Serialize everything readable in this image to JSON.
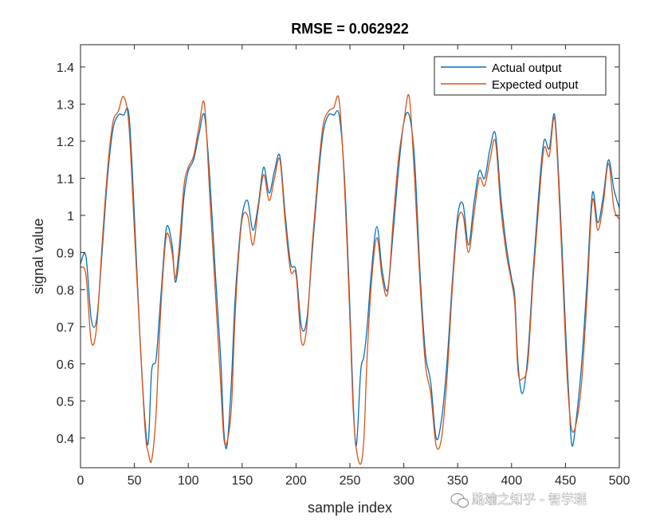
{
  "chart_data": {
    "type": "line",
    "title": "RMSE = 0.062922",
    "xlabel": "sample index",
    "ylabel": "signal value",
    "xlim": [
      0,
      500
    ],
    "ylim": [
      0.32,
      1.46
    ],
    "xticks": [
      0,
      50,
      100,
      150,
      200,
      250,
      300,
      350,
      400,
      450,
      500
    ],
    "yticks": [
      0.4,
      0.5,
      0.6,
      0.7,
      0.8,
      0.9,
      1.0,
      1.1,
      1.2,
      1.3,
      1.4
    ],
    "ytick_labels": [
      "0.4",
      "0.5",
      "0.6",
      "0.7",
      "0.8",
      "0.9",
      "1",
      "1.1",
      "1.2",
      "1.3",
      "1.4"
    ],
    "legend_position": "top-right",
    "series": [
      {
        "name": "Actual output",
        "color": "#0072BD",
        "x": [
          0,
          5,
          10,
          15,
          20,
          25,
          30,
          35,
          40,
          45,
          50,
          55,
          60,
          63,
          66,
          70,
          73,
          76,
          80,
          85,
          88,
          92,
          96,
          100,
          105,
          110,
          115,
          120,
          125,
          130,
          133,
          136,
          140,
          143,
          146,
          150,
          155,
          160,
          165,
          170,
          175,
          180,
          185,
          190,
          195,
          200,
          205,
          210,
          215,
          220,
          225,
          230,
          235,
          240,
          245,
          250,
          253,
          256,
          260,
          263,
          266,
          270,
          275,
          280,
          285,
          290,
          295,
          300,
          305,
          310,
          315,
          320,
          325,
          330,
          335,
          340,
          345,
          350,
          355,
          360,
          365,
          370,
          375,
          380,
          385,
          390,
          395,
          400,
          403,
          406,
          410,
          415,
          420,
          425,
          430,
          435,
          440,
          445,
          450,
          453,
          456,
          460,
          465,
          470,
          475,
          480,
          485,
          490,
          495,
          500
        ],
        "values": [
          0.87,
          0.89,
          0.72,
          0.72,
          0.9,
          1.1,
          1.23,
          1.27,
          1.27,
          1.27,
          1.0,
          0.68,
          0.44,
          0.39,
          0.58,
          0.61,
          0.72,
          0.84,
          0.97,
          0.92,
          0.82,
          0.9,
          1.05,
          1.12,
          1.15,
          1.22,
          1.27,
          1.1,
          0.85,
          0.62,
          0.42,
          0.38,
          0.55,
          0.75,
          0.88,
          1.0,
          1.04,
          0.96,
          1.03,
          1.13,
          1.06,
          1.12,
          1.16,
          1.0,
          0.87,
          0.85,
          0.7,
          0.72,
          0.9,
          1.08,
          1.22,
          1.27,
          1.27,
          1.27,
          1.1,
          0.75,
          0.5,
          0.38,
          0.58,
          0.62,
          0.7,
          0.85,
          0.97,
          0.85,
          0.8,
          0.95,
          1.12,
          1.25,
          1.27,
          1.15,
          0.85,
          0.63,
          0.55,
          0.4,
          0.45,
          0.6,
          0.82,
          1.0,
          1.03,
          0.92,
          1.03,
          1.12,
          1.1,
          1.18,
          1.22,
          1.05,
          0.92,
          0.83,
          0.78,
          0.6,
          0.52,
          0.62,
          0.85,
          1.05,
          1.2,
          1.18,
          1.27,
          1.03,
          0.7,
          0.52,
          0.38,
          0.45,
          0.6,
          0.82,
          1.06,
          0.98,
          1.05,
          1.15,
          1.07,
          1.02
        ]
      },
      {
        "name": "Expected output",
        "color": "#D95319",
        "x": [
          0,
          5,
          10,
          15,
          20,
          25,
          30,
          35,
          40,
          45,
          50,
          55,
          60,
          63,
          66,
          70,
          73,
          76,
          80,
          85,
          88,
          92,
          96,
          100,
          105,
          110,
          115,
          120,
          125,
          130,
          133,
          136,
          140,
          143,
          146,
          150,
          155,
          160,
          165,
          170,
          175,
          180,
          185,
          190,
          195,
          200,
          205,
          210,
          215,
          220,
          225,
          230,
          235,
          240,
          245,
          250,
          253,
          256,
          260,
          263,
          266,
          270,
          275,
          280,
          285,
          290,
          295,
          300,
          305,
          310,
          315,
          320,
          325,
          330,
          335,
          340,
          345,
          350,
          355,
          360,
          365,
          370,
          375,
          380,
          385,
          390,
          395,
          400,
          403,
          406,
          410,
          415,
          420,
          425,
          430,
          435,
          440,
          445,
          450,
          453,
          456,
          460,
          465,
          470,
          475,
          480,
          485,
          490,
          495,
          500
        ],
        "values": [
          0.86,
          0.84,
          0.66,
          0.7,
          0.92,
          1.12,
          1.25,
          1.28,
          1.32,
          1.24,
          0.96,
          0.68,
          0.42,
          0.36,
          0.34,
          0.46,
          0.66,
          0.82,
          0.95,
          0.9,
          0.83,
          0.93,
          1.08,
          1.13,
          1.16,
          1.24,
          1.3,
          1.05,
          0.8,
          0.55,
          0.4,
          0.39,
          0.48,
          0.7,
          0.86,
          0.99,
          1.0,
          0.92,
          1.02,
          1.11,
          1.04,
          1.1,
          1.15,
          0.98,
          0.85,
          0.84,
          0.66,
          0.7,
          0.92,
          1.1,
          1.24,
          1.28,
          1.29,
          1.31,
          1.08,
          0.72,
          0.48,
          0.37,
          0.33,
          0.4,
          0.62,
          0.82,
          0.94,
          0.83,
          0.79,
          0.98,
          1.15,
          1.25,
          1.32,
          1.1,
          0.82,
          0.6,
          0.52,
          0.38,
          0.4,
          0.56,
          0.8,
          0.98,
          1.0,
          0.9,
          1.0,
          1.1,
          1.08,
          1.15,
          1.2,
          1.02,
          0.9,
          0.82,
          0.76,
          0.58,
          0.56,
          0.6,
          0.83,
          1.02,
          1.18,
          1.16,
          1.26,
          1.0,
          0.66,
          0.5,
          0.42,
          0.44,
          0.55,
          0.78,
          1.04,
          0.96,
          1.03,
          1.14,
          1.02,
          0.99
        ]
      }
    ]
  },
  "watermark": {
    "text": "路瑜之知乎 - 智学理",
    "icon": "wechat-icon"
  }
}
